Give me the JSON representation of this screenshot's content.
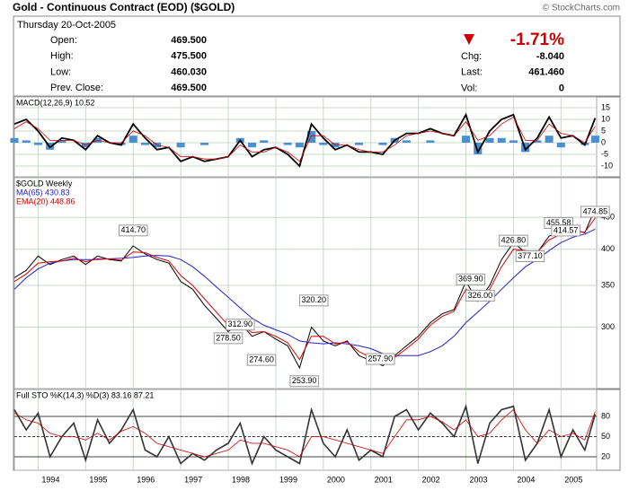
{
  "header": {
    "title": "Gold - Continuous Contract (EOD) ($GOLD)",
    "credit": "© StockCharts.com",
    "date": "Thursday 20-Oct-2005",
    "quote_left": [
      [
        "Open:",
        "469.500"
      ],
      [
        "High:",
        "475.500"
      ],
      [
        "Low:",
        "460.030"
      ],
      [
        "Prev. Close:",
        "469.500"
      ]
    ],
    "change_pct": "-1.71%",
    "quote_right": [
      [
        "Chg:",
        "-8.040"
      ],
      [
        "Last:",
        "461.460"
      ],
      [
        "Vol:",
        "0"
      ]
    ]
  },
  "chart_data": [
    {
      "type": "line",
      "title": "MACD(12,26,9) 10.52",
      "x": [
        1993.5,
        1993.75,
        1994,
        1994.25,
        1994.5,
        1994.75,
        1995,
        1995.25,
        1995.5,
        1995.75,
        1996,
        1996.25,
        1996.5,
        1996.75,
        1997,
        1997.25,
        1997.5,
        1997.75,
        1998,
        1998.25,
        1998.5,
        1998.75,
        1999,
        1999.25,
        1999.5,
        1999.75,
        2000,
        2000.25,
        2000.5,
        2000.75,
        2001,
        2001.25,
        2001.5,
        2001.75,
        2002,
        2002.25,
        2002.5,
        2002.75,
        2003,
        2003.25,
        2003.5,
        2003.75,
        2004,
        2004.25,
        2004.5,
        2004.75,
        2005,
        2005.25,
        2005.5,
        2005.72
      ],
      "xlim": [
        1993.5,
        2005.75
      ],
      "ylim": [
        -14.6,
        19.6
      ],
      "yticks": [
        15,
        10,
        5,
        0,
        -5,
        -10
      ],
      "series": [
        {
          "kind": "bar",
          "color": "#4a8fd0",
          "values": [
            2,
            1,
            -1,
            -3,
            1,
            0,
            -2,
            2,
            0,
            -1,
            3,
            -1,
            -2,
            0,
            -2,
            0,
            -1,
            0,
            0,
            2,
            -2,
            1,
            0,
            -1,
            -2,
            5,
            -1,
            -2,
            0,
            -1,
            0,
            -1,
            2,
            1,
            0,
            1,
            0,
            0,
            3,
            -5,
            2,
            2,
            1,
            -4,
            1,
            3,
            -2,
            0,
            -1,
            3
          ]
        },
        {
          "name": "MACD(12,26,9) 10.52",
          "color": "#000000",
          "width": 1.8,
          "values": [
            8,
            10,
            5,
            -2,
            2,
            1,
            -3,
            3,
            0,
            -1,
            8,
            2,
            -3,
            -2,
            -8,
            -6,
            -8,
            -7,
            -6,
            1,
            -6,
            -3,
            -2,
            -5,
            -10,
            8,
            2,
            -3,
            -1,
            -4,
            -4,
            -5,
            1,
            4,
            4,
            6,
            4,
            3,
            12,
            -4,
            5,
            10,
            12,
            -3,
            2,
            11,
            2,
            3,
            -1,
            10.52
          ]
        },
        {
          "color": "#cc0000",
          "width": 0.8,
          "values": [
            6,
            9,
            6,
            1,
            1,
            1,
            -1,
            1,
            0,
            0,
            5,
            3,
            -1,
            -2,
            -6,
            -6,
            -7,
            -7,
            -6,
            -1,
            -4,
            -4,
            -2,
            -4,
            -8,
            3,
            3,
            -1,
            -1,
            -3,
            -4,
            -4,
            -1,
            3,
            4,
            5,
            4,
            3,
            9,
            1,
            3,
            8,
            11,
            1,
            1,
            8,
            4,
            3,
            0,
            7
          ]
        }
      ]
    },
    {
      "type": "line",
      "log": true,
      "x": [
        1993.5,
        1993.75,
        1994,
        1994.25,
        1994.5,
        1994.75,
        1995,
        1995.25,
        1995.5,
        1995.75,
        1996,
        1996.25,
        1996.5,
        1996.75,
        1997,
        1997.25,
        1997.5,
        1997.75,
        1998,
        1998.25,
        1998.5,
        1998.75,
        1999,
        1999.25,
        1999.5,
        1999.75,
        2000,
        2000.25,
        2000.5,
        2000.75,
        2001,
        2001.25,
        2001.5,
        2001.75,
        2002,
        2002.25,
        2002.5,
        2002.75,
        2003,
        2003.25,
        2003.5,
        2003.75,
        2004,
        2004.25,
        2004.5,
        2004.75,
        2005,
        2005.25,
        2005.5,
        2005.72
      ],
      "xlim": [
        1993.5,
        2005.75
      ],
      "ylim": [
        239,
        521
      ],
      "yticks": [
        300,
        350,
        400,
        450
      ],
      "series": [
        {
          "name": "$GOLD Weekly",
          "color": "#000000",
          "width": 1,
          "values": [
            360,
            370,
            390,
            378,
            385,
            390,
            378,
            390,
            385,
            383,
            405,
            393,
            385,
            380,
            355,
            345,
            325,
            310,
            295,
            305,
            290,
            295,
            287,
            280,
            258,
            300,
            285,
            280,
            285,
            270,
            265,
            260,
            270,
            280,
            290,
            305,
            315,
            320,
            355,
            330,
            350,
            385,
            410,
            395,
            395,
            420,
            425,
            430,
            425,
            465
          ]
        },
        {
          "name": "MA(65) 430.83",
          "color": "#2222cc",
          "width": 1,
          "values": [
            345,
            360,
            372,
            380,
            383,
            385,
            385,
            385,
            386,
            387,
            388,
            390,
            391,
            390,
            385,
            375,
            362,
            348,
            335,
            322,
            310,
            302,
            297,
            292,
            285,
            283,
            282,
            283,
            282,
            280,
            277,
            272,
            270,
            270,
            270,
            274,
            280,
            290,
            305,
            317,
            330,
            345,
            360,
            375,
            385,
            398,
            410,
            418,
            423,
            430.83
          ]
        },
        {
          "name": "EMA(20) 448.86",
          "color": "#dd0000",
          "width": 1,
          "values": [
            355,
            365,
            380,
            382,
            383,
            387,
            382,
            386,
            386,
            384,
            396,
            395,
            388,
            383,
            363,
            350,
            333,
            317,
            302,
            303,
            294,
            295,
            290,
            283,
            266,
            290,
            290,
            282,
            284,
            274,
            268,
            262,
            268,
            277,
            287,
            302,
            312,
            318,
            345,
            337,
            345,
            375,
            400,
            398,
            396,
            414,
            423,
            428,
            426,
            448.86
          ]
        }
      ],
      "annotations": [
        {
          "x": 1996.0,
          "value": 414.7,
          "label": "414.70"
        },
        {
          "x": 1998.25,
          "value": 312.9,
          "label": "312.90"
        },
        {
          "x": 1998.0,
          "value": 278.5,
          "label": "278.50"
        },
        {
          "x": 1998.7,
          "value": 274.6,
          "label": "274.60"
        },
        {
          "x": 1999.8,
          "value": 320.2,
          "label": "320.20"
        },
        {
          "x": 1999.6,
          "value": 253.9,
          "label": "253.90"
        },
        {
          "x": 2001.2,
          "value": 257.9,
          "label": "257.90"
        },
        {
          "x": 2003.1,
          "value": 369.9,
          "label": "369.90"
        },
        {
          "x": 2003.3,
          "value": 326.0,
          "label": "326.00"
        },
        {
          "x": 2004.0,
          "value": 426.8,
          "label": "426.80"
        },
        {
          "x": 2004.35,
          "value": 377.1,
          "label": "377.10"
        },
        {
          "x": 2004.95,
          "value": 455.58,
          "label": "455.58"
        },
        {
          "x": 2005.1,
          "value": 414.57,
          "label": "414.57"
        },
        {
          "x": 2005.72,
          "value": 474.85,
          "label": "474.85"
        }
      ]
    },
    {
      "type": "line",
      "title": "Full STO %K(14,3) %D(3) 83.16 87.21",
      "x": [
        1993.5,
        1993.75,
        1994,
        1994.25,
        1994.5,
        1994.75,
        1995,
        1995.25,
        1995.5,
        1995.75,
        1996,
        1996.25,
        1996.5,
        1996.75,
        1997,
        1997.25,
        1997.5,
        1997.75,
        1998,
        1998.25,
        1998.5,
        1998.75,
        1999,
        1999.25,
        1999.5,
        1999.75,
        2000,
        2000.25,
        2000.5,
        2000.75,
        2001,
        2001.25,
        2001.5,
        2001.75,
        2002,
        2002.25,
        2002.5,
        2002.75,
        2003,
        2003.25,
        2003.5,
        2003.75,
        2004,
        2004.25,
        2004.5,
        2004.75,
        2005,
        2005.25,
        2005.5,
        2005.72
      ],
      "xlim": [
        1993.5,
        2005.75
      ],
      "xticks": [
        1994,
        1995,
        1996,
        1997,
        1998,
        1999,
        2000,
        2001,
        2002,
        2003,
        2004,
        2005
      ],
      "ylim": [
        0,
        120
      ],
      "yticks": [
        80,
        50,
        20
      ],
      "series": [
        {
          "color": "#333333",
          "width": 1.6,
          "values": [
            90,
            60,
            85,
            20,
            50,
            70,
            15,
            75,
            40,
            60,
            90,
            30,
            20,
            50,
            10,
            25,
            15,
            30,
            40,
            70,
            10,
            50,
            30,
            20,
            10,
            90,
            40,
            20,
            60,
            15,
            30,
            20,
            80,
            90,
            60,
            85,
            70,
            50,
            95,
            10,
            70,
            90,
            95,
            15,
            40,
            90,
            20,
            60,
            30,
            83.16
          ]
        },
        {
          "color": "#cc0000",
          "width": 0.8,
          "values": [
            85,
            75,
            70,
            55,
            50,
            50,
            45,
            55,
            45,
            58,
            65,
            55,
            40,
            35,
            30,
            25,
            20,
            25,
            30,
            45,
            40,
            40,
            35,
            30,
            20,
            50,
            50,
            45,
            40,
            35,
            30,
            25,
            50,
            75,
            75,
            80,
            72,
            60,
            75,
            50,
            55,
            75,
            90,
            60,
            40,
            60,
            50,
            55,
            45,
            87.21
          ]
        }
      ]
    }
  ]
}
